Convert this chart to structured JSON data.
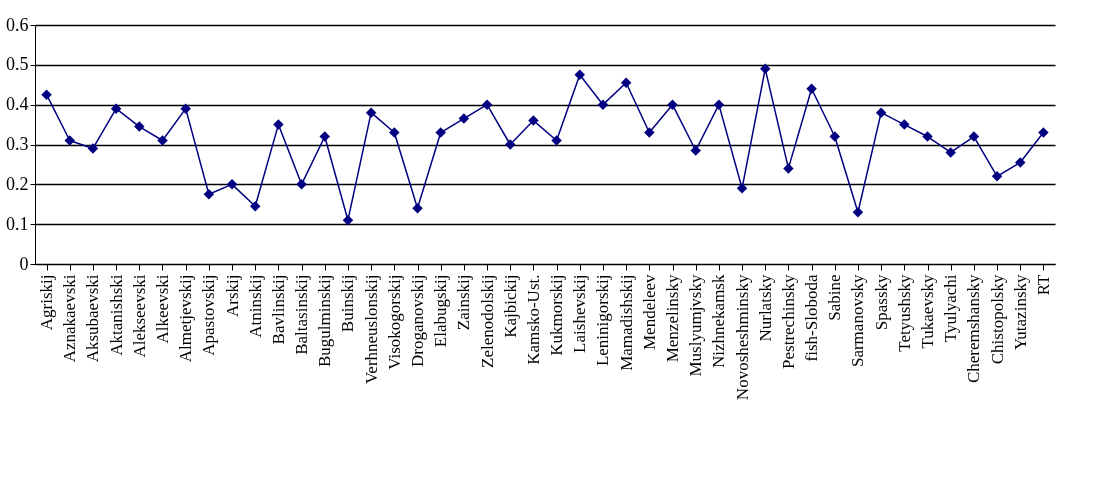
{
  "chart_data": {
    "type": "line",
    "categories": [
      "Agriskij",
      "Aznakaevski",
      "Aksubaevski",
      "Aktanishski",
      "Alekseevski",
      "Alkeevski",
      "Almetjevskij",
      "Apastovskij",
      "Arskij",
      "Atninskij",
      "Bavlinskij",
      "Baltasinskij",
      "Bugulminskij",
      "Buinskij",
      "Verhneuslonskij",
      "Visokogorskij",
      "Droganovskij",
      "Elabugskij",
      "Zainskij",
      "Zelenodolskij",
      "Kajbickij",
      "Kamsko-Ust.",
      "Kukmorskij",
      "Laishevskij",
      "Leninigorskij",
      "Mamadishskij",
      "Mendeleev",
      "Menzelinsky",
      "Muslyumjvsky",
      "Nizhnekamsk",
      "Novosheshminsky",
      "Nurlatsky",
      "Pestrechinsky",
      "fish-Sloboda",
      "Sabine",
      "Sarmanovsky",
      "Spassky",
      "Tetyushsky",
      "Tukaevsky",
      "Tyulyachi",
      "Cheremshansky",
      "Chistopolsky",
      "Yutazinsky",
      "RT"
    ],
    "series": [
      {
        "color": "#000080",
        "values": [
          0.425,
          0.31,
          0.29,
          0.39,
          0.345,
          0.31,
          0.39,
          0.175,
          0.2,
          0.145,
          0.35,
          0.2,
          0.32,
          0.11,
          0.38,
          0.33,
          0.14,
          0.33,
          0.365,
          0.4,
          0.3,
          0.36,
          0.31,
          0.475,
          0.4,
          0.455,
          0.33,
          0.4,
          0.285,
          0.4,
          0.19,
          0.49,
          0.24,
          0.44,
          0.32,
          0.13,
          0.38,
          0.35,
          0.32,
          0.28,
          0.32,
          0.22,
          0.255,
          0.33
        ]
      }
    ],
    "ylim": [
      0,
      0.6
    ],
    "yticks": [
      0,
      0.1,
      0.2,
      0.3,
      0.4,
      0.5,
      0.6
    ],
    "grid": "y",
    "marker": "diamond",
    "line_style": "solid",
    "legend": false
  }
}
